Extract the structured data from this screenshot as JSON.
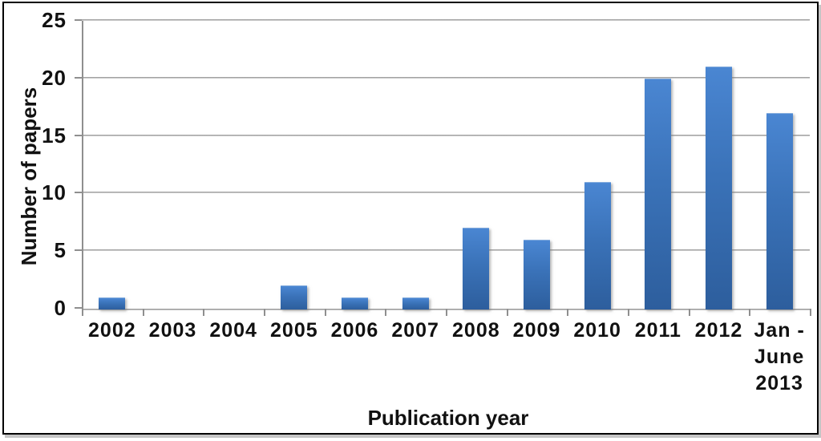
{
  "chart_data": {
    "type": "bar",
    "title": "",
    "categories": [
      "2002",
      "2003",
      "2004",
      "2005",
      "2006",
      "2007",
      "2008",
      "2009",
      "2010",
      "2011",
      "2012",
      "Jan -\nJune\n2013"
    ],
    "values": [
      1,
      0,
      0,
      2,
      1,
      1,
      7,
      6,
      11,
      20,
      21,
      17
    ],
    "xlabel": "Publication year",
    "ylabel": "Number of papers",
    "ylim": [
      0,
      25
    ],
    "yticks": [
      0,
      5,
      10,
      15,
      20,
      25
    ],
    "grid": true,
    "legend": false,
    "bar_color_top": "#4a86d2",
    "bar_color_bottom": "#2d5e9d",
    "axis_color": "#8f8f8f",
    "text_color": "#111111",
    "frame_color": "#000000",
    "background_color": "#ffffff"
  }
}
